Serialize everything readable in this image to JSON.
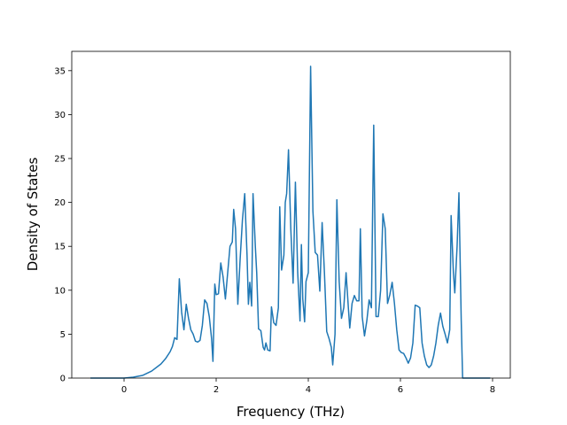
{
  "chart_data": {
    "type": "line",
    "xlabel": "Frequency (THz)",
    "ylabel": "Density of States",
    "color": "#1f77b4",
    "x": [
      -0.73,
      -0.4,
      0,
      0.2,
      0.4,
      0.6,
      0.8,
      0.9,
      1.0,
      1.05,
      1.1,
      1.15,
      1.2,
      1.25,
      1.3,
      1.35,
      1.4,
      1.45,
      1.5,
      1.55,
      1.6,
      1.65,
      1.7,
      1.75,
      1.8,
      1.85,
      1.9,
      1.93,
      1.97,
      2.0,
      2.05,
      2.1,
      2.15,
      2.2,
      2.25,
      2.3,
      2.35,
      2.38,
      2.42,
      2.47,
      2.52,
      2.57,
      2.62,
      2.67,
      2.7,
      2.73,
      2.77,
      2.8,
      2.85,
      2.88,
      2.92,
      2.97,
      3.02,
      3.05,
      3.08,
      3.12,
      3.17,
      3.2,
      3.25,
      3.3,
      3.35,
      3.38,
      3.42,
      3.47,
      3.5,
      3.53,
      3.57,
      3.62,
      3.67,
      3.72,
      3.77,
      3.82,
      3.85,
      3.88,
      3.92,
      3.95,
      4.0,
      4.05,
      4.1,
      4.15,
      4.2,
      4.25,
      4.3,
      4.35,
      4.4,
      4.45,
      4.5,
      4.53,
      4.58,
      4.62,
      4.67,
      4.72,
      4.77,
      4.82,
      4.87,
      4.9,
      4.95,
      5.0,
      5.05,
      5.1,
      5.13,
      5.17,
      5.22,
      5.27,
      5.32,
      5.37,
      5.42,
      5.47,
      5.52,
      5.57,
      5.62,
      5.67,
      5.72,
      5.77,
      5.82,
      5.87,
      5.92,
      5.97,
      6.02,
      6.07,
      6.12,
      6.17,
      6.22,
      6.27,
      6.32,
      6.37,
      6.42,
      6.47,
      6.52,
      6.57,
      6.62,
      6.67,
      6.72,
      6.77,
      6.82,
      6.87,
      6.92,
      6.97,
      7.02,
      7.07,
      7.1,
      7.15,
      7.18,
      7.23,
      7.27,
      7.32,
      7.35,
      7.5,
      7.7,
      7.95
    ],
    "values": [
      0,
      0,
      0,
      0.1,
      0.3,
      0.8,
      1.6,
      2.2,
      3.0,
      3.6,
      4.6,
      4.4,
      11.3,
      7.5,
      5.5,
      8.4,
      6.8,
      5.5,
      5.0,
      4.2,
      4.1,
      4.3,
      6.0,
      8.9,
      8.5,
      7.0,
      4.5,
      1.9,
      10.7,
      9.5,
      9.6,
      13.1,
      11.5,
      9.0,
      12.0,
      15.0,
      15.5,
      19.2,
      17.0,
      8.4,
      13.5,
      18.0,
      21.0,
      14.0,
      8.4,
      10.9,
      8.2,
      21.0,
      15.0,
      12.0,
      5.6,
      5.4,
      3.5,
      3.2,
      4.0,
      3.2,
      3.1,
      8.1,
      6.3,
      6.0,
      8.0,
      19.5,
      12.3,
      14.0,
      20.0,
      21.0,
      26.0,
      17.0,
      10.8,
      22.3,
      12.0,
      6.5,
      15.2,
      9.0,
      6.4,
      11.0,
      12.0,
      35.5,
      19.0,
      14.3,
      14.0,
      9.9,
      17.7,
      12.0,
      5.3,
      4.5,
      3.5,
      1.5,
      5.0,
      20.3,
      11.0,
      6.8,
      8.0,
      12.0,
      8.0,
      5.7,
      8.5,
      9.4,
      8.8,
      8.8,
      17.0,
      7.0,
      4.8,
      6.5,
      8.9,
      8.0,
      28.8,
      7.0,
      7.0,
      10.0,
      18.7,
      17.0,
      8.5,
      9.5,
      10.9,
      8.5,
      5.5,
      3.2,
      2.9,
      2.8,
      2.3,
      1.7,
      2.3,
      4.0,
      8.3,
      8.2,
      8.0,
      4.0,
      2.5,
      1.5,
      1.2,
      1.5,
      2.5,
      4.0,
      6.0,
      7.4,
      5.9,
      5.0,
      4.0,
      5.5,
      18.5,
      12.0,
      9.7,
      15.0,
      21.1,
      6.5,
      0,
      0,
      0,
      0
    ],
    "xlim": [
      -1.135,
      8.385
    ],
    "ylim": [
      0,
      37.2
    ],
    "xticks": [
      0,
      2,
      4,
      6,
      8
    ],
    "yticks": [
      0,
      5,
      10,
      15,
      20,
      25,
      30,
      35
    ]
  }
}
